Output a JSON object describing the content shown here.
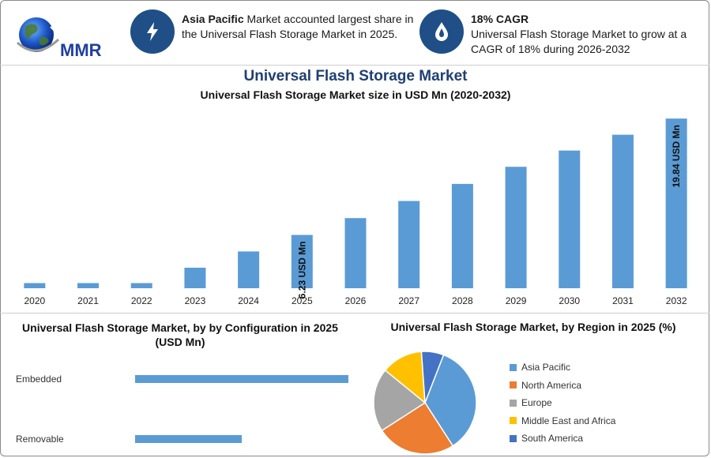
{
  "logo": {
    "text": "MMR"
  },
  "info": [
    {
      "icon": "lightning-icon",
      "bold": "Asia Pacific",
      "text": " Market accounted largest share in the Universal Flash Storage Market in 2025."
    },
    {
      "icon": "drop-icon",
      "bold": "18% CAGR",
      "text": "Universal Flash Storage Market to grow at a CAGR of 18% during 2026-2032"
    }
  ],
  "colors": {
    "bar": "#5b9bd5",
    "title": "#1f3f73",
    "icon_bg": "#1f4f86"
  },
  "chart_data": [
    {
      "type": "bar",
      "title": "Universal Flash Storage Market",
      "subtitle": "Universal Flash Storage Market size in USD Mn (2020-2032)",
      "categories": [
        "2020",
        "2021",
        "2022",
        "2023",
        "2024",
        "2025",
        "2026",
        "2027",
        "2028",
        "2029",
        "2030",
        "2031",
        "2032"
      ],
      "values": [
        0.6,
        0.6,
        0.6,
        2.4,
        4.3,
        6.23,
        8.2,
        10.2,
        12.2,
        14.2,
        16.1,
        17.95,
        19.84
      ],
      "ylim": [
        0,
        20.5
      ],
      "data_labels": {
        "2025": "6.23 USD Mn",
        "2032": "19.84 USD Mn"
      }
    },
    {
      "type": "bar",
      "orientation": "horizontal",
      "title": "Universal Flash Storage Market, by by Configuration in 2025 (USD Mn)",
      "categories": [
        "Embedded",
        "Removable"
      ],
      "values": [
        4.0,
        2.0
      ]
    },
    {
      "type": "pie",
      "title": "Universal Flash Storage Market, by Region in 2025 (%)",
      "labels": [
        "Asia Pacific",
        "North America",
        "Europe",
        "Middle East and Africa",
        "South America"
      ],
      "values": [
        35,
        25,
        20,
        13,
        7
      ],
      "colors": [
        "#5b9bd5",
        "#ed7d31",
        "#a5a5a5",
        "#ffc000",
        "#4472c4"
      ]
    }
  ]
}
